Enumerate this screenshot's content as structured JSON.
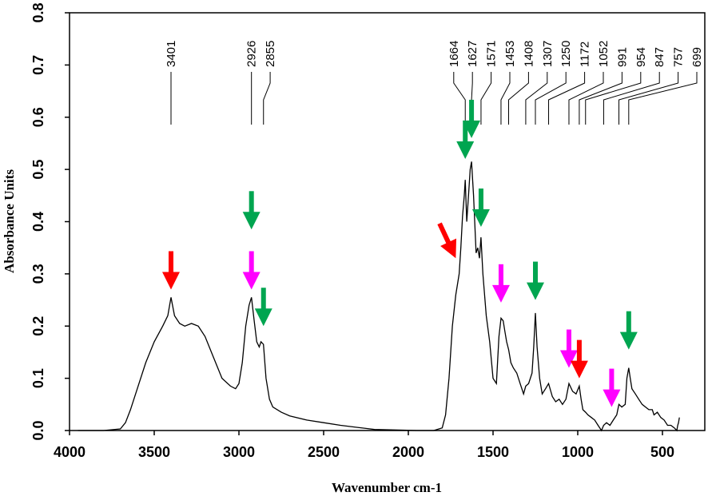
{
  "chart_data": {
    "type": "line",
    "title": "",
    "xlabel": "Wavenumber cm-1",
    "ylabel": "Absorbance Units",
    "xlim": [
      4000,
      250
    ],
    "ylim": [
      0,
      0.8
    ],
    "x_reversed": true,
    "x_ticks": [
      4000,
      3500,
      3000,
      2500,
      2000,
      1500,
      1000,
      500
    ],
    "y_ticks": [
      "0.0",
      "0.1",
      "0.2",
      "0.3",
      "0.4",
      "0.5",
      "0.6",
      "0.7",
      "0.8"
    ],
    "grid": false,
    "series": [
      {
        "color": "#000000",
        "x": [
          3950,
          3800,
          3700,
          3670,
          3640,
          3600,
          3550,
          3500,
          3450,
          3420,
          3401,
          3380,
          3350,
          3320,
          3280,
          3240,
          3200,
          3150,
          3100,
          3050,
          3020,
          3000,
          2980,
          2960,
          2940,
          2926,
          2910,
          2895,
          2880,
          2870,
          2855,
          2840,
          2820,
          2800,
          2750,
          2700,
          2600,
          2500,
          2400,
          2300,
          2250,
          2200,
          1950,
          1850,
          1800,
          1780,
          1760,
          1740,
          1720,
          1700,
          1690,
          1680,
          1670,
          1664,
          1655,
          1645,
          1635,
          1627,
          1615,
          1600,
          1590,
          1580,
          1571,
          1560,
          1550,
          1540,
          1520,
          1500,
          1480,
          1465,
          1453,
          1440,
          1430,
          1420,
          1408,
          1395,
          1380,
          1360,
          1340,
          1320,
          1307,
          1290,
          1270,
          1260,
          1250,
          1240,
          1225,
          1210,
          1190,
          1172,
          1150,
          1130,
          1110,
          1090,
          1070,
          1052,
          1030,
          1010,
          991,
          980,
          970,
          954,
          940,
          920,
          900,
          880,
          860,
          847,
          830,
          810,
          790,
          770,
          757,
          740,
          720,
          710,
          699,
          690,
          680,
          660,
          640,
          620,
          600,
          580,
          560,
          550,
          530,
          510,
          490,
          470,
          450,
          430,
          415,
          410,
          405,
          400
        ],
        "y": [
          0.0,
          0.0,
          0.003,
          0.015,
          0.04,
          0.08,
          0.13,
          0.17,
          0.2,
          0.22,
          0.255,
          0.22,
          0.205,
          0.2,
          0.205,
          0.2,
          0.18,
          0.14,
          0.1,
          0.085,
          0.08,
          0.09,
          0.13,
          0.2,
          0.24,
          0.255,
          0.21,
          0.17,
          0.16,
          0.17,
          0.165,
          0.1,
          0.06,
          0.045,
          0.035,
          0.028,
          0.02,
          0.015,
          0.01,
          0.006,
          0.004,
          0.002,
          0.0,
          0.0,
          0.005,
          0.03,
          0.1,
          0.2,
          0.26,
          0.3,
          0.35,
          0.41,
          0.45,
          0.48,
          0.4,
          0.45,
          0.5,
          0.515,
          0.45,
          0.34,
          0.35,
          0.33,
          0.37,
          0.3,
          0.26,
          0.22,
          0.17,
          0.1,
          0.09,
          0.18,
          0.215,
          0.21,
          0.19,
          0.17,
          0.155,
          0.13,
          0.12,
          0.11,
          0.09,
          0.07,
          0.085,
          0.09,
          0.11,
          0.16,
          0.225,
          0.16,
          0.1,
          0.07,
          0.08,
          0.09,
          0.065,
          0.055,
          0.06,
          0.05,
          0.06,
          0.09,
          0.075,
          0.07,
          0.085,
          0.06,
          0.04,
          0.035,
          0.03,
          0.025,
          0.02,
          0.01,
          0.0,
          0.01,
          0.015,
          0.01,
          0.02,
          0.03,
          0.05,
          0.045,
          0.05,
          0.1,
          0.12,
          0.1,
          0.08,
          0.07,
          0.06,
          0.05,
          0.045,
          0.04,
          0.04,
          0.03,
          0.035,
          0.025,
          0.02,
          0.01,
          0.01,
          0.005,
          0.0,
          0.01,
          0.015,
          0.025
        ]
      }
    ],
    "peak_labels": [
      "3401",
      "2926",
      "2855",
      "1664",
      "1627",
      "1571",
      "1453",
      "1408",
      "1307",
      "1250",
      "1172",
      "1052",
      "991",
      "954",
      "847",
      "757",
      "699"
    ],
    "arrows": [
      {
        "x": 3401,
        "y": 0.27,
        "color": "#ff0000",
        "angle": 0
      },
      {
        "x": 2926,
        "y": 0.27,
        "color": "#ff00ff",
        "angle": 0
      },
      {
        "x": 2926,
        "y": 0.385,
        "color": "#00a550",
        "angle": 0
      },
      {
        "x": 2855,
        "y": 0.2,
        "color": "#00a550",
        "angle": 0
      },
      {
        "x": 1720,
        "y": 0.33,
        "color": "#ff0000",
        "angle": -25
      },
      {
        "x": 1664,
        "y": 0.52,
        "color": "#00a550",
        "angle": 0
      },
      {
        "x": 1627,
        "y": 0.56,
        "color": "#00a550",
        "angle": 0
      },
      {
        "x": 1571,
        "y": 0.39,
        "color": "#00a550",
        "angle": 0
      },
      {
        "x": 1453,
        "y": 0.245,
        "color": "#ff00ff",
        "angle": 0
      },
      {
        "x": 1250,
        "y": 0.25,
        "color": "#00a550",
        "angle": 0
      },
      {
        "x": 1052,
        "y": 0.12,
        "color": "#ff00ff",
        "angle": 0
      },
      {
        "x": 991,
        "y": 0.1,
        "color": "#ff0000",
        "angle": 0
      },
      {
        "x": 800,
        "y": 0.045,
        "color": "#ff00ff",
        "angle": 0
      },
      {
        "x": 699,
        "y": 0.155,
        "color": "#00a550",
        "angle": 0
      }
    ]
  }
}
